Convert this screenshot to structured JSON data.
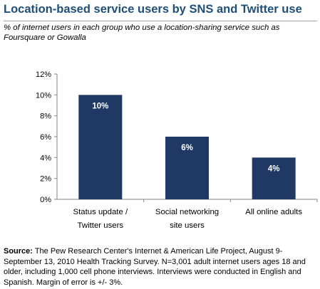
{
  "header": {
    "title": "Location-based service users by SNS and Twitter use",
    "subtitle": "% of internet users in each group who use a location-sharing service such as Foursquare or Gowalla"
  },
  "chart_data": {
    "type": "bar",
    "title": "Location-based service users by SNS and Twitter use",
    "categories": [
      [
        "Status update /",
        "Twitter users"
      ],
      [
        "Social networking",
        "site users"
      ],
      [
        "All online adults"
      ]
    ],
    "values": [
      10,
      6,
      4
    ],
    "data_labels": [
      "10%",
      "6%",
      "4%"
    ],
    "yticks": [
      "0%",
      "2%",
      "4%",
      "6%",
      "8%",
      "10%",
      "12%"
    ],
    "ylim": [
      0,
      12
    ],
    "bar_color": "#1f3864",
    "label_color": "#ffffff",
    "grid": false,
    "legend": "none"
  },
  "footer": {
    "source_label": "Source:",
    "source_text": " The Pew Research Center's Internet & American Life Project, August 9-September 13, 2010 Health Tracking Survey. N=3,001 adult internet users ages 18 and older, including 1,000 cell phone interviews. Interviews were conducted in English and Spanish. Margin of error is +/- 3%."
  }
}
